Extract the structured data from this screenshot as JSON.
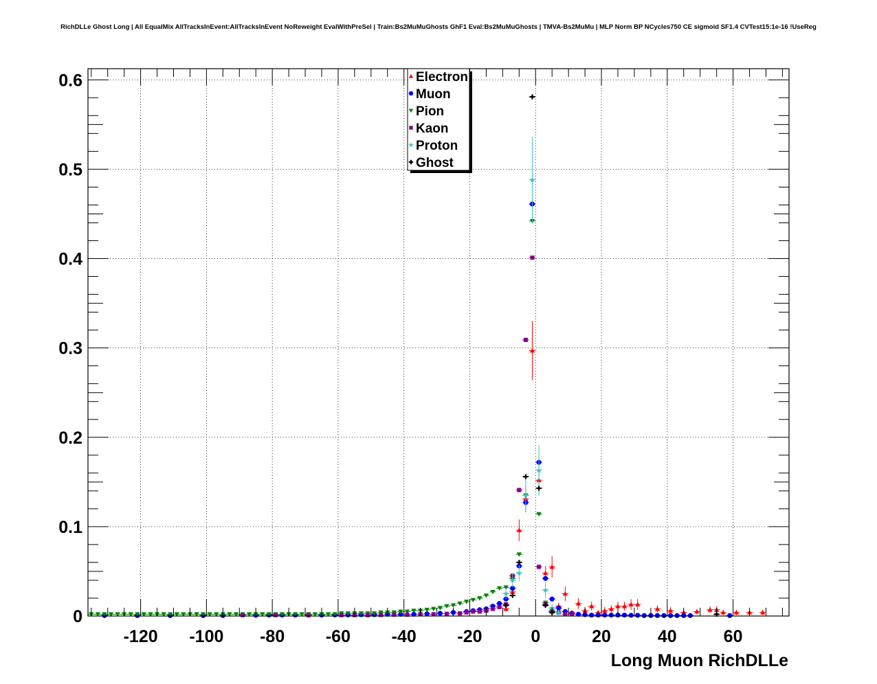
{
  "chart_data": {
    "type": "scatter",
    "title": "RichDLLe Ghost Long | All EqualMix AllTracksInEvent:AllTracksInEvent NoReweight EvalWithPreSel | Train:Bs2MuMuGhosts GhF1 Eval:Bs2MuMuGhosts | TMVA-Bs2MuMu | MLP Norm BP NCycles750 CE sigmoid SF1.4 CVTest15:1e-16 !UseReg",
    "xlabel": "Long Muon RichDLLe",
    "ylabel": "",
    "xlim": [
      -136,
      77
    ],
    "ylim": [
      0,
      0.6125
    ],
    "grid": true,
    "legend_position": "top-center",
    "x_ticks": [
      -120,
      -100,
      -80,
      -60,
      -40,
      -20,
      0,
      20,
      40,
      60
    ],
    "x_tick_labels": [
      "-120",
      "-100",
      "-80",
      "-60",
      "-40",
      "-20",
      "0",
      "20",
      "40",
      "60"
    ],
    "y_ticks": [
      0,
      0.1,
      0.2,
      0.3,
      0.4,
      0.5,
      0.6
    ],
    "y_tick_labels": [
      "0",
      "0.1",
      "0.2",
      "0.3",
      "0.4",
      "0.5",
      "0.6"
    ],
    "series": [
      {
        "name": "Electron",
        "color": "#ff0000",
        "marker": "triangle-up",
        "x": [
          -9,
          -7,
          -5,
          -3,
          -1,
          1,
          3,
          5,
          7,
          9,
          11,
          13,
          15,
          17,
          19,
          21,
          23,
          25,
          27,
          29,
          31,
          37,
          41,
          45,
          49,
          53,
          55,
          57,
          61,
          65,
          69
        ],
        "y": [
          0.008,
          0.027,
          0.096,
          0.131,
          0.297,
          0.152,
          0.048,
          0.055,
          0.011,
          0.025,
          0.004,
          0.014,
          0.006,
          0.011,
          0.004,
          0.006,
          0.008,
          0.011,
          0.011,
          0.013,
          0.013,
          0.008,
          0.006,
          0.004,
          0.005,
          0.007,
          0.007,
          0.004,
          0.004,
          0.004,
          0.004
        ],
        "err": [
          0.003,
          0.005,
          0.012,
          0.015,
          0.033,
          0.017,
          0.008,
          0.012,
          0.004,
          0.008,
          0.002,
          0.006,
          0.004,
          0.005,
          0.002,
          0.004,
          0.004,
          0.005,
          0.005,
          0.006,
          0.006,
          0.004,
          0.004,
          0.003,
          0.003,
          0.004,
          0.004,
          0.003,
          0.003,
          0.003,
          0.003
        ]
      },
      {
        "name": "Muon",
        "color": "#0000ff",
        "marker": "circle",
        "x": [
          -131,
          -121,
          -111,
          -101,
          -95,
          -85,
          -81,
          -77,
          -73,
          -69,
          -65,
          -61,
          -57,
          -53,
          -49,
          -45,
          -41,
          -37,
          -33,
          -29,
          -25,
          -21,
          -19,
          -17,
          -15,
          -13,
          -11,
          -9,
          -7,
          -5,
          -3,
          -1,
          1,
          3,
          5,
          7,
          9,
          11,
          13,
          15,
          17,
          19,
          21,
          23,
          25,
          27,
          29,
          31,
          33,
          35,
          37,
          39,
          41,
          43,
          45,
          47,
          59
        ],
        "y": [
          0.0005,
          0.0005,
          0.0005,
          0.0005,
          0.0005,
          0.0008,
          0.001,
          0.001,
          0.001,
          0.001,
          0.001,
          0.0012,
          0.0012,
          0.0015,
          0.0015,
          0.002,
          0.002,
          0.002,
          0.0025,
          0.003,
          0.004,
          0.005,
          0.006,
          0.007,
          0.008,
          0.011,
          0.014,
          0.019,
          0.031,
          0.056,
          0.127,
          0.461,
          0.172,
          0.042,
          0.019,
          0.009,
          0.005,
          0.003,
          0.002,
          0.0015,
          0.001,
          0.001,
          0.001,
          0.001,
          0.001,
          0.001,
          0.0008,
          0.0008,
          0.0005,
          0.0005,
          0.0005,
          0.0005,
          0.0005,
          0.0005,
          0.0005,
          0.0005,
          0.0005
        ],
        "err": []
      },
      {
        "name": "Pion",
        "color": "#008000",
        "marker": "triangle-down",
        "x": [
          -135,
          -133,
          -131,
          -129,
          -127,
          -125,
          -123,
          -121,
          -119,
          -117,
          -115,
          -113,
          -111,
          -109,
          -107,
          -105,
          -103,
          -101,
          -99,
          -97,
          -95,
          -93,
          -91,
          -89,
          -87,
          -85,
          -83,
          -81,
          -79,
          -77,
          -75,
          -73,
          -71,
          -69,
          -67,
          -65,
          -63,
          -61,
          -59,
          -57,
          -55,
          -53,
          -51,
          -49,
          -47,
          -45,
          -43,
          -41,
          -39,
          -37,
          -35,
          -33,
          -31,
          -29,
          -27,
          -25,
          -23,
          -21,
          -19,
          -17,
          -15,
          -13,
          -11,
          -9,
          -7,
          -5,
          -3,
          -1,
          1,
          3,
          5
        ],
        "y": [
          0.002,
          0.002,
          0.002,
          0.002,
          0.002,
          0.002,
          0.002,
          0.002,
          0.002,
          0.002,
          0.002,
          0.002,
          0.002,
          0.002,
          0.002,
          0.002,
          0.002,
          0.002,
          0.002,
          0.002,
          0.002,
          0.002,
          0.002,
          0.002,
          0.002,
          0.002,
          0.002,
          0.002,
          0.002,
          0.002,
          0.002,
          0.002,
          0.002,
          0.002,
          0.002,
          0.002,
          0.002,
          0.002,
          0.003,
          0.003,
          0.003,
          0.003,
          0.003,
          0.003,
          0.004,
          0.004,
          0.004,
          0.005,
          0.005,
          0.006,
          0.006,
          0.007,
          0.008,
          0.009,
          0.011,
          0.012,
          0.014,
          0.016,
          0.018,
          0.02,
          0.023,
          0.027,
          0.031,
          0.032,
          0.042,
          0.069,
          0.135,
          0.442,
          0.114,
          0.015,
          0.006
        ],
        "err": []
      },
      {
        "name": "Kaon",
        "color": "#8b008b",
        "marker": "square",
        "x": [
          -89,
          -79,
          -69,
          -59,
          -55,
          -51,
          -47,
          -43,
          -39,
          -35,
          -31,
          -27,
          -23,
          -21,
          -19,
          -17,
          -15,
          -13,
          -11,
          -9,
          -7,
          -5,
          -3,
          -1,
          1,
          3,
          5,
          7,
          9,
          11
        ],
        "y": [
          0.001,
          0.001,
          0.001,
          0.001,
          0.001,
          0.001,
          0.0012,
          0.0015,
          0.0015,
          0.002,
          0.002,
          0.0025,
          0.003,
          0.004,
          0.005,
          0.005,
          0.006,
          0.008,
          0.01,
          0.013,
          0.045,
          0.141,
          0.309,
          0.401,
          0.055,
          0.013,
          0.005,
          0.004,
          0.002,
          0.002
        ],
        "err": []
      },
      {
        "name": "Proton",
        "color": "#40c0c0",
        "marker": "star",
        "x": [
          -9,
          -7,
          -5,
          -3,
          -1,
          1,
          3,
          5,
          7
        ],
        "y": [
          0.025,
          0.04,
          0.048,
          0.135,
          0.488,
          0.163,
          0.029,
          0.009,
          0.004
        ],
        "err": [
          0.006,
          0.008,
          0.009,
          0.018,
          0.048,
          0.028,
          0.009,
          0.005,
          0.003
        ]
      },
      {
        "name": "Ghost",
        "color": "#000000",
        "marker": "plus",
        "x": [
          -9,
          -7,
          -5,
          -3,
          -1,
          1,
          3,
          5,
          55
        ],
        "y": [
          0.012,
          0.023,
          0.06,
          0.156,
          0.581,
          0.143,
          0.012,
          0.004,
          0.002
        ],
        "err": []
      }
    ]
  }
}
